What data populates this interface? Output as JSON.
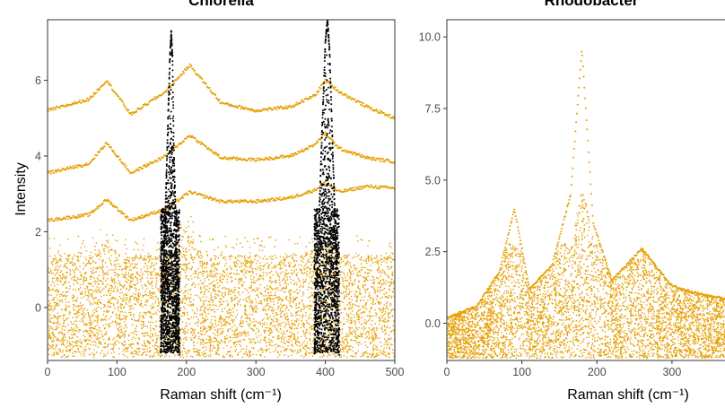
{
  "chart_data": [
    {
      "type": "scatter",
      "title": "Chlorella",
      "xlabel": "Raman shift (cm⁻¹)",
      "ylabel": "Intensity",
      "xlim": [
        0,
        500
      ],
      "ylim": [
        -1.4,
        7.6
      ],
      "xticks": [
        "0",
        "100",
        "200",
        "300",
        "400",
        "500"
      ],
      "yticks": [
        "0",
        "2",
        "4",
        "6"
      ],
      "x_tick_values": [
        0,
        100,
        200,
        300,
        400,
        500
      ],
      "y_tick_values": [
        0,
        2,
        4,
        6
      ],
      "grid": false,
      "colors": {
        "spectra": "#E69F00",
        "highlight": "#000000"
      },
      "series": [
        {
          "style": "spectra",
          "x": [
            0,
            60,
            85,
            120,
            170,
            205,
            250,
            300,
            350,
            385,
            400,
            420,
            460,
            500
          ],
          "y": [
            5.2,
            5.5,
            6.0,
            5.1,
            5.7,
            6.4,
            5.4,
            5.2,
            5.3,
            5.6,
            6.0,
            5.7,
            5.3,
            5.0
          ]
        },
        {
          "style": "spectra",
          "x": [
            0,
            60,
            85,
            120,
            170,
            205,
            250,
            300,
            350,
            385,
            400,
            420,
            460,
            500
          ],
          "y": [
            3.55,
            3.8,
            4.35,
            3.55,
            4.0,
            4.55,
            3.95,
            3.9,
            4.0,
            4.3,
            4.6,
            4.2,
            3.95,
            3.85
          ]
        },
        {
          "style": "spectra",
          "x": [
            0,
            60,
            85,
            120,
            170,
            205,
            250,
            300,
            350,
            385,
            400,
            420,
            460,
            500
          ],
          "y": [
            2.3,
            2.45,
            2.85,
            2.3,
            2.6,
            3.05,
            2.8,
            2.8,
            2.9,
            3.1,
            3.3,
            3.05,
            3.2,
            3.15
          ]
        },
        {
          "style": "highlight",
          "x": [
            163,
            168,
            172,
            176,
            178,
            180,
            182,
            186,
            190
          ],
          "y": [
            -1.2,
            1.5,
            4.0,
            6.5,
            7.3,
            6.6,
            4.0,
            1.5,
            -1.2
          ]
        },
        {
          "style": "highlight",
          "x": [
            384,
            390,
            395,
            400,
            403,
            406,
            410,
            415,
            420
          ],
          "y": [
            -1.2,
            1.8,
            4.5,
            7.0,
            7.6,
            6.8,
            4.5,
            1.8,
            -1.2
          ]
        }
      ]
    },
    {
      "type": "scatter",
      "title": "Rhodobacter",
      "xlabel": "Raman shift (cm⁻¹)",
      "ylabel": "",
      "xlim": [
        0,
        385
      ],
      "ylim": [
        -1.3,
        10.6
      ],
      "xticks": [
        "0",
        "100",
        "200",
        "300"
      ],
      "yticks": [
        "0.0",
        "2.5",
        "5.0",
        "7.5",
        "10.0"
      ],
      "x_tick_values": [
        0,
        100,
        200,
        300
      ],
      "y_tick_values": [
        0,
        2.5,
        5.0,
        7.5,
        10.0
      ],
      "grid": false,
      "colors": {
        "spectra": "#E69F00"
      },
      "series": [
        {
          "style": "spectra",
          "x": [
            0,
            40,
            70,
            90,
            110,
            140,
            165,
            180,
            195,
            220,
            260,
            300,
            340,
            385
          ],
          "y": [
            0.2,
            0.6,
            1.8,
            4.0,
            1.2,
            2.0,
            4.5,
            9.6,
            3.5,
            1.5,
            2.6,
            1.3,
            1.0,
            0.8
          ]
        }
      ]
    }
  ]
}
